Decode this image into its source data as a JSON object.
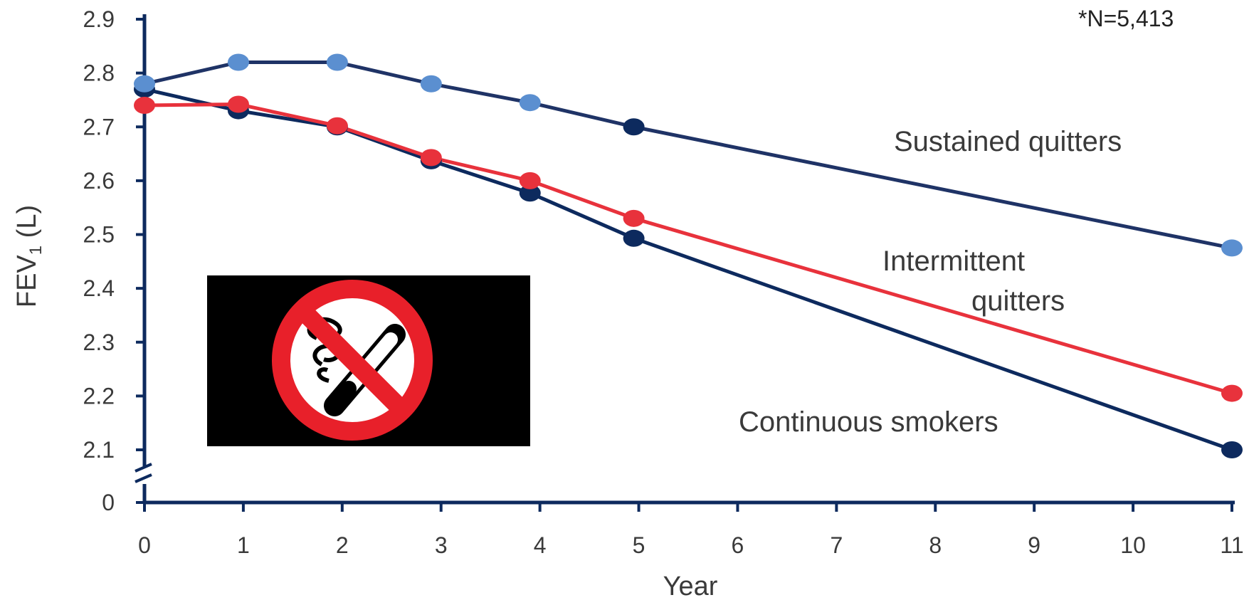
{
  "chart_data": {
    "type": "line",
    "xlabel": "Year",
    "ylabel": "FEV1 (L)",
    "ylabel_main": "FEV",
    "ylabel_sub": "1",
    "ylabel_unit": " (L)",
    "note": "*N=5,413",
    "x_ticks": [
      "0",
      "1",
      "2",
      "3",
      "4",
      "5",
      "6",
      "7",
      "8",
      "9",
      "10",
      "11"
    ],
    "y_ticks": [
      "0",
      "2.1",
      "2.2",
      "2.3",
      "2.4",
      "2.5",
      "2.6",
      "2.7",
      "2.8",
      "2.9"
    ],
    "xlim": [
      0,
      11
    ],
    "ylim": [
      2.1,
      2.9
    ],
    "y_axis_break": true,
    "grid": false,
    "series": [
      {
        "name": "Sustained quitters",
        "line_color": "#1f3366",
        "marker_color": "#5b8fd0",
        "end_marker_color": "#5b8fd0",
        "points": [
          [
            0,
            2.78
          ],
          [
            0.95,
            2.82
          ],
          [
            1.95,
            2.82
          ],
          [
            2.9,
            2.78
          ],
          [
            3.9,
            2.745
          ],
          [
            4.95,
            2.7
          ],
          [
            11,
            2.475
          ]
        ],
        "marker_colors": [
          "#5b8fd0",
          "#5b8fd0",
          "#5b8fd0",
          "#5b8fd0",
          "#5b8fd0",
          "#0d2a5e",
          "#5b8fd0"
        ]
      },
      {
        "name": "Intermittent quitters",
        "line_color": "#e8323c",
        "points": [
          [
            0,
            2.74
          ],
          [
            0.95,
            2.742
          ],
          [
            1.95,
            2.702
          ],
          [
            2.9,
            2.643
          ],
          [
            3.9,
            2.6
          ],
          [
            4.95,
            2.53
          ],
          [
            11,
            2.205
          ]
        ],
        "marker_colors": [
          "#e8323c",
          "#e8323c",
          "#e8323c",
          "#e8323c",
          "#e8323c",
          "#e8323c",
          "#e8323c"
        ]
      },
      {
        "name": "Continuous smokers",
        "line_color": "#0d2a5e",
        "points": [
          [
            0,
            2.77
          ],
          [
            0.95,
            2.73
          ],
          [
            1.95,
            2.7
          ],
          [
            2.9,
            2.637
          ],
          [
            3.9,
            2.577
          ],
          [
            4.95,
            2.493
          ],
          [
            11,
            2.1
          ]
        ],
        "marker_colors": [
          "#0d2a5e",
          "#0d2a5e",
          "#0d2a5e",
          "#0d2a5e",
          "#0d2a5e",
          "#0d2a5e",
          "#0d2a5e"
        ]
      }
    ],
    "annotations": {
      "sustained": "Sustained quitters",
      "intermittent_1": "Intermittent",
      "intermittent_2": "quitters",
      "continuous": "Continuous smokers"
    },
    "colors": {
      "axis": "#0d2a5e",
      "text": "#3a3a3a",
      "no_smoking_red": "#e8202a"
    }
  }
}
